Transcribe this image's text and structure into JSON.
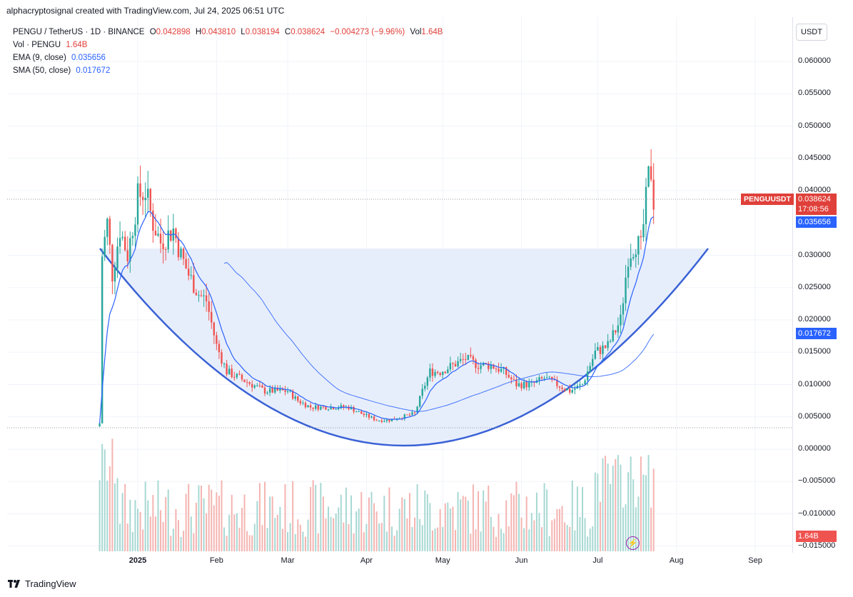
{
  "header": {
    "attribution": "alphacryptosignal created with TradingView.com, Jul 24, 2025 06:51 UTC"
  },
  "legend": {
    "symbol": "PENGU / TetherUS · 1D · BINANCE",
    "o_label": "O",
    "o_value": "0.042898",
    "h_label": "H",
    "h_value": "0.043810",
    "l_label": "L",
    "l_value": "0.038194",
    "c_label": "C",
    "c_value": "0.038624",
    "change": "−0.004273 (−9.96%)",
    "vol_label": "Vol",
    "vol_value": "1.64B",
    "vol_line_label": "Vol · PENGU",
    "vol_line_value": "1.64B",
    "ema_label": "EMA (9, close)",
    "ema_value": "0.035656",
    "sma_label": "SMA (50, close)",
    "sma_value": "0.017672"
  },
  "currency_button": "USDT",
  "price_badges": {
    "symbol_tag": "PENGUUSDT",
    "last_price": "0.038624",
    "countdown": "17:08:56",
    "ema_badge": "0.035656",
    "sma_badge": "0.017672",
    "vol_badge": "1.64B"
  },
  "footer": {
    "brand": "TradingView"
  },
  "colors": {
    "up": "#26a69a",
    "down": "#ef5350",
    "ema": "#2962ff",
    "sma": "#2962ff",
    "cup_fill": "#e3ebfa",
    "cup_line": "#3a62d6",
    "volume_up": "#a7d8d3",
    "volume_down": "#f4b4b1"
  },
  "icons": {
    "footer_logo": "tradingview-logo-icon",
    "bolt": "lightning-bolt-icon"
  },
  "chart_data": {
    "type": "candlestick",
    "y_axis_ticks": [
      "0.060000",
      "0.055000",
      "0.050000",
      "0.045000",
      "0.040000",
      "0.030000",
      "0.025000",
      "0.020000",
      "0.015000",
      "0.010000",
      "0.005000",
      "0.000000",
      "−0.005000",
      "−0.010000",
      "−0.015000"
    ],
    "x_axis_ticks": [
      "2025",
      "Feb",
      "Mar",
      "Apr",
      "May",
      "Jun",
      "Jul",
      "Aug",
      "Sep"
    ],
    "ylim": [
      -0.0155,
      0.0645
    ],
    "series": [
      {
        "name": "EMA (9, close)",
        "last": 0.035656
      },
      {
        "name": "SMA (50, close)",
        "last": 0.017672
      }
    ],
    "close_path": [
      [
        "2024-12-17",
        0.004
      ],
      [
        "2024-12-18",
        0.03
      ],
      [
        "2024-12-20",
        0.035
      ],
      [
        "2024-12-22",
        0.027
      ],
      [
        "2024-12-25",
        0.034
      ],
      [
        "2024-12-28",
        0.03
      ],
      [
        "2025-01-01",
        0.039
      ],
      [
        "2025-01-04",
        0.04
      ],
      [
        "2025-01-07",
        0.035
      ],
      [
        "2025-01-10",
        0.032
      ],
      [
        "2025-01-15",
        0.034
      ],
      [
        "2025-01-18",
        0.03
      ],
      [
        "2025-01-21",
        0.027
      ],
      [
        "2025-01-25",
        0.024
      ],
      [
        "2025-01-28",
        0.023
      ],
      [
        "2025-02-01",
        0.016
      ],
      [
        "2025-02-05",
        0.012
      ],
      [
        "2025-02-10",
        0.011
      ],
      [
        "2025-02-15",
        0.01
      ],
      [
        "2025-02-20",
        0.009
      ],
      [
        "2025-02-25",
        0.009
      ],
      [
        "2025-03-01",
        0.009
      ],
      [
        "2025-03-05",
        0.0075
      ],
      [
        "2025-03-10",
        0.0065
      ],
      [
        "2025-03-15",
        0.0065
      ],
      [
        "2025-03-20",
        0.0065
      ],
      [
        "2025-03-25",
        0.0065
      ],
      [
        "2025-03-30",
        0.0055
      ],
      [
        "2025-04-05",
        0.0045
      ],
      [
        "2025-04-10",
        0.0045
      ],
      [
        "2025-04-15",
        0.005
      ],
      [
        "2025-04-20",
        0.0055
      ],
      [
        "2025-04-23",
        0.009
      ],
      [
        "2025-04-26",
        0.012
      ],
      [
        "2025-04-30",
        0.012
      ],
      [
        "2025-05-05",
        0.013
      ],
      [
        "2025-05-10",
        0.014
      ],
      [
        "2025-05-15",
        0.013
      ],
      [
        "2025-05-20",
        0.013
      ],
      [
        "2025-05-25",
        0.012
      ],
      [
        "2025-05-30",
        0.01
      ],
      [
        "2025-06-05",
        0.01
      ],
      [
        "2025-06-10",
        0.011
      ],
      [
        "2025-06-15",
        0.01
      ],
      [
        "2025-06-20",
        0.009
      ],
      [
        "2025-06-25",
        0.01
      ],
      [
        "2025-06-30",
        0.015
      ],
      [
        "2025-07-05",
        0.016
      ],
      [
        "2025-07-10",
        0.02
      ],
      [
        "2025-07-13",
        0.03
      ],
      [
        "2025-07-16",
        0.032
      ],
      [
        "2025-07-18",
        0.031
      ],
      [
        "2025-07-21",
        0.042
      ],
      [
        "2025-07-22",
        0.043
      ],
      [
        "2025-07-23",
        0.0386
      ]
    ]
  }
}
